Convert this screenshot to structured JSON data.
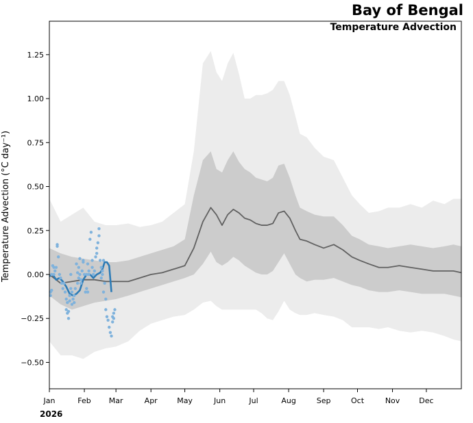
{
  "chart_data": {
    "type": "line",
    "title": "Bay of Bengal",
    "subtitle": "Temperature Advection",
    "ylabel": "Temperature Advection (°C day⁻¹)",
    "year_label": "2026",
    "xlim": [
      0,
      365
    ],
    "ylim": [
      -0.65,
      1.44
    ],
    "yticks": [
      -0.5,
      -0.25,
      0.0,
      0.25,
      0.5,
      0.75,
      1.0,
      1.25
    ],
    "ytick_labels": [
      "−0.50",
      "−0.25",
      "0.00",
      "0.25",
      "0.50",
      "0.75",
      "1.00",
      "1.25"
    ],
    "xticks": [
      0,
      31,
      59,
      90,
      120,
      151,
      181,
      212,
      243,
      273,
      304,
      334
    ],
    "xtick_labels": [
      "Jan",
      "Feb",
      "Mar",
      "Apr",
      "May",
      "Jun",
      "Jul",
      "Aug",
      "Sep",
      "Oct",
      "Nov",
      "Dec"
    ],
    "colors": {
      "outer_band": "#ececec",
      "inner_band": "#cccccc",
      "climatology": "#606060",
      "current": "#2c7bb6",
      "members": "#7fb2dc"
    },
    "series": [
      {
        "name": "Climatology mean",
        "x": [
          0,
          10,
          20,
          30,
          40,
          50,
          59,
          70,
          80,
          90,
          100,
          110,
          120,
          128,
          136,
          143,
          148,
          153,
          158,
          163,
          168,
          173,
          178,
          183,
          188,
          193,
          198,
          203,
          208,
          213,
          218,
          222,
          228,
          235,
          243,
          252,
          260,
          268,
          275,
          283,
          292,
          300,
          310,
          320,
          330,
          340,
          350,
          358,
          365
        ],
        "y": [
          0.0,
          -0.05,
          -0.04,
          -0.03,
          -0.03,
          -0.04,
          -0.04,
          -0.04,
          -0.02,
          0.0,
          0.01,
          0.03,
          0.05,
          0.15,
          0.3,
          0.38,
          0.34,
          0.28,
          0.34,
          0.37,
          0.35,
          0.32,
          0.31,
          0.29,
          0.28,
          0.28,
          0.29,
          0.35,
          0.36,
          0.32,
          0.25,
          0.2,
          0.19,
          0.17,
          0.15,
          0.17,
          0.14,
          0.1,
          0.08,
          0.06,
          0.04,
          0.04,
          0.05,
          0.04,
          0.03,
          0.02,
          0.02,
          0.02,
          0.01
        ]
      },
      {
        "name": "Inner range (upper)",
        "x": [
          0,
          10,
          20,
          30,
          40,
          50,
          59,
          70,
          80,
          90,
          100,
          110,
          120,
          128,
          136,
          143,
          148,
          153,
          158,
          163,
          168,
          173,
          178,
          183,
          188,
          193,
          198,
          203,
          208,
          213,
          218,
          222,
          228,
          235,
          243,
          252,
          260,
          268,
          275,
          283,
          292,
          300,
          310,
          320,
          330,
          340,
          350,
          358,
          365
        ],
        "y": [
          0.15,
          0.12,
          0.1,
          0.09,
          0.08,
          0.07,
          0.07,
          0.08,
          0.1,
          0.12,
          0.14,
          0.16,
          0.2,
          0.45,
          0.65,
          0.7,
          0.6,
          0.58,
          0.65,
          0.7,
          0.64,
          0.6,
          0.58,
          0.55,
          0.54,
          0.53,
          0.55,
          0.62,
          0.63,
          0.55,
          0.45,
          0.38,
          0.36,
          0.34,
          0.33,
          0.33,
          0.28,
          0.22,
          0.2,
          0.17,
          0.16,
          0.15,
          0.16,
          0.17,
          0.16,
          0.15,
          0.16,
          0.17,
          0.16
        ]
      },
      {
        "name": "Inner range (lower)",
        "x": [
          0,
          10,
          20,
          30,
          40,
          50,
          59,
          70,
          80,
          90,
          100,
          110,
          120,
          128,
          136,
          143,
          148,
          153,
          158,
          163,
          168,
          173,
          178,
          183,
          188,
          193,
          198,
          203,
          208,
          213,
          218,
          222,
          228,
          235,
          243,
          252,
          260,
          268,
          275,
          283,
          292,
          300,
          310,
          320,
          330,
          340,
          350,
          358,
          365
        ],
        "y": [
          -0.12,
          -0.17,
          -0.2,
          -0.18,
          -0.16,
          -0.15,
          -0.14,
          -0.12,
          -0.1,
          -0.08,
          -0.06,
          -0.04,
          -0.02,
          0.0,
          0.06,
          0.13,
          0.07,
          0.05,
          0.07,
          0.1,
          0.08,
          0.05,
          0.03,
          0.01,
          0.0,
          0.0,
          0.02,
          0.07,
          0.12,
          0.06,
          0.0,
          -0.02,
          -0.04,
          -0.03,
          -0.03,
          -0.02,
          -0.04,
          -0.06,
          -0.07,
          -0.09,
          -0.1,
          -0.1,
          -0.09,
          -0.1,
          -0.11,
          -0.11,
          -0.11,
          -0.12,
          -0.13
        ]
      },
      {
        "name": "Outer range (upper)",
        "x": [
          0,
          10,
          20,
          30,
          40,
          50,
          59,
          70,
          80,
          90,
          100,
          110,
          120,
          128,
          136,
          143,
          148,
          153,
          158,
          163,
          168,
          173,
          178,
          183,
          188,
          193,
          198,
          203,
          208,
          213,
          218,
          222,
          228,
          235,
          243,
          252,
          260,
          268,
          275,
          283,
          292,
          300,
          310,
          320,
          330,
          340,
          350,
          358,
          365
        ],
        "y": [
          0.43,
          0.3,
          0.34,
          0.38,
          0.3,
          0.28,
          0.28,
          0.29,
          0.27,
          0.28,
          0.3,
          0.35,
          0.4,
          0.7,
          1.2,
          1.27,
          1.15,
          1.1,
          1.2,
          1.26,
          1.14,
          1.0,
          1.0,
          1.02,
          1.02,
          1.03,
          1.05,
          1.1,
          1.1,
          1.02,
          0.9,
          0.8,
          0.78,
          0.72,
          0.67,
          0.65,
          0.55,
          0.45,
          0.4,
          0.35,
          0.36,
          0.38,
          0.38,
          0.4,
          0.38,
          0.42,
          0.4,
          0.43,
          0.43
        ]
      },
      {
        "name": "Outer range (lower)",
        "x": [
          0,
          10,
          20,
          30,
          40,
          50,
          59,
          70,
          80,
          90,
          100,
          110,
          120,
          128,
          136,
          143,
          148,
          153,
          158,
          163,
          168,
          173,
          178,
          183,
          188,
          193,
          198,
          203,
          208,
          213,
          218,
          222,
          228,
          235,
          243,
          252,
          260,
          268,
          275,
          283,
          292,
          300,
          310,
          320,
          330,
          340,
          350,
          358,
          365
        ],
        "y": [
          -0.38,
          -0.46,
          -0.46,
          -0.48,
          -0.44,
          -0.42,
          -0.41,
          -0.38,
          -0.32,
          -0.28,
          -0.26,
          -0.24,
          -0.23,
          -0.2,
          -0.16,
          -0.15,
          -0.18,
          -0.2,
          -0.2,
          -0.2,
          -0.2,
          -0.2,
          -0.2,
          -0.2,
          -0.22,
          -0.25,
          -0.26,
          -0.21,
          -0.15,
          -0.2,
          -0.22,
          -0.23,
          -0.23,
          -0.22,
          -0.23,
          -0.24,
          -0.26,
          -0.3,
          -0.3,
          -0.3,
          -0.31,
          -0.3,
          -0.32,
          -0.33,
          -0.32,
          -0.33,
          -0.35,
          -0.37,
          -0.38
        ]
      },
      {
        "name": "2026 observed",
        "x": [
          0,
          3,
          6,
          9,
          12,
          15,
          18,
          21,
          24,
          27,
          30,
          33,
          36,
          39,
          42,
          45,
          47,
          49,
          51,
          53,
          55
        ],
        "y": [
          -0.01,
          0.0,
          -0.03,
          -0.02,
          -0.04,
          -0.07,
          -0.11,
          -0.12,
          -0.11,
          -0.09,
          -0.03,
          0.0,
          0.0,
          -0.02,
          0.0,
          0.01,
          0.03,
          0.07,
          0.07,
          0.05,
          -0.1
        ]
      },
      {
        "name": "2026 members",
        "x": [
          1,
          1,
          2,
          2,
          3,
          4,
          4,
          5,
          6,
          7,
          7,
          8,
          9,
          10,
          11,
          12,
          13,
          14,
          15,
          15,
          16,
          16,
          17,
          17,
          18,
          18,
          19,
          19,
          20,
          20,
          21,
          22,
          22,
          23,
          24,
          25,
          25,
          26,
          26,
          27,
          27,
          28,
          28,
          29,
          30,
          30,
          31,
          32,
          33,
          33,
          34,
          34,
          35,
          35,
          36,
          37,
          38,
          38,
          39,
          40,
          41,
          42,
          42,
          43,
          44,
          44,
          45,
          46,
          46,
          47,
          47,
          48,
          48,
          49,
          50,
          50,
          51,
          52,
          53,
          54,
          55,
          56,
          56,
          57,
          57,
          58
        ],
        "y": [
          -0.1,
          -0.12,
          -0.09,
          0.0,
          0.05,
          0.04,
          0.0,
          0.02,
          0.04,
          0.17,
          0.16,
          0.1,
          0.0,
          -0.02,
          -0.05,
          -0.08,
          -0.05,
          -0.1,
          -0.14,
          -0.2,
          -0.16,
          -0.22,
          -0.25,
          -0.21,
          -0.12,
          -0.15,
          -0.08,
          0.0,
          -0.1,
          -0.17,
          -0.14,
          -0.16,
          -0.12,
          -0.08,
          0.06,
          0.01,
          -0.05,
          -0.02,
          0.04,
          0.0,
          0.09,
          -0.03,
          -0.05,
          0.02,
          0.07,
          0.08,
          0.0,
          -0.1,
          -0.08,
          0.0,
          0.06,
          -0.1,
          0.0,
          0.02,
          0.2,
          0.24,
          0.08,
          0.04,
          0.0,
          0.02,
          0.1,
          0.15,
          0.12,
          0.18,
          0.22,
          0.26,
          0.08,
          0.04,
          -0.02,
          0.0,
          0.02,
          0.08,
          -0.1,
          -0.05,
          -0.14,
          -0.2,
          -0.24,
          -0.26,
          -0.3,
          -0.33,
          -0.35,
          -0.24,
          -0.27,
          -0.22,
          -0.25,
          -0.2
        ]
      }
    ]
  }
}
